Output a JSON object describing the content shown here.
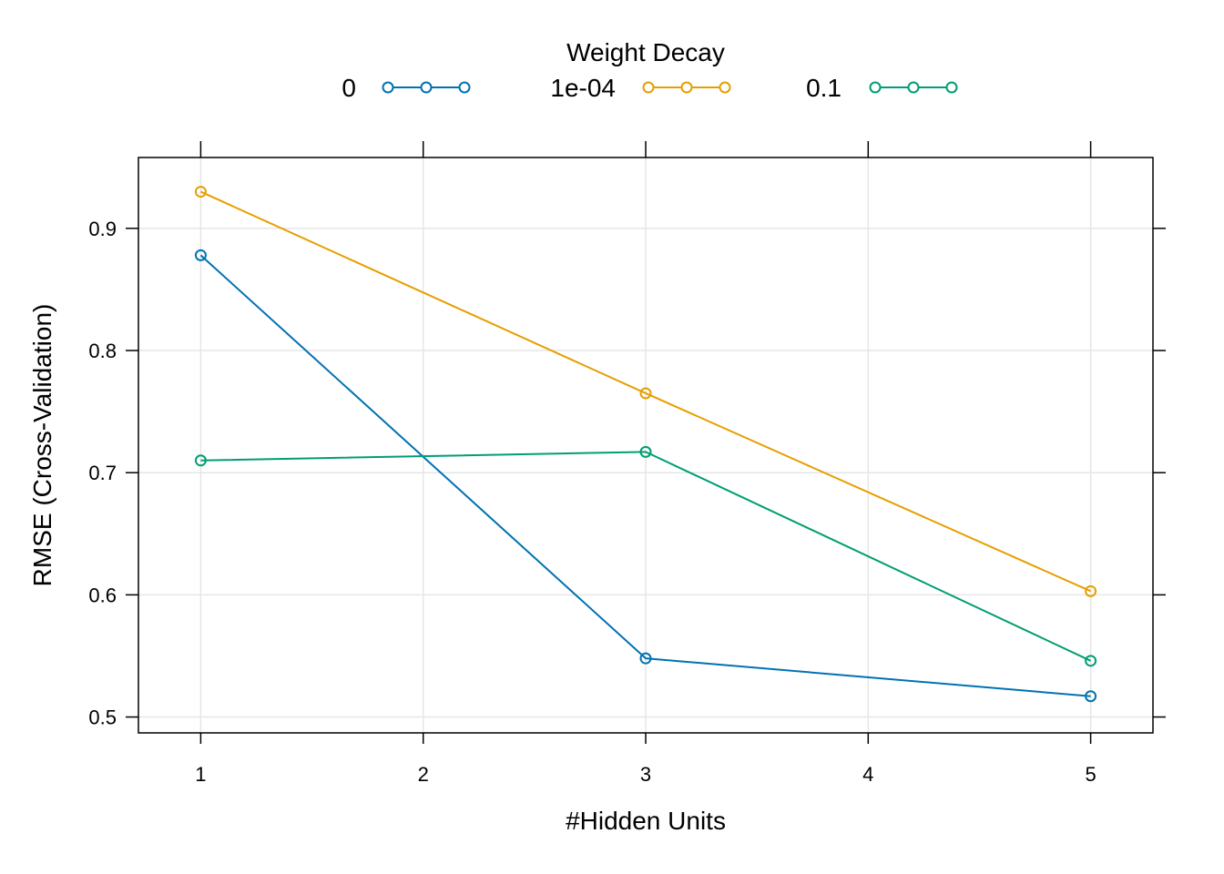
{
  "chart_data": {
    "type": "line",
    "xlabel": "#Hidden Units",
    "ylabel": "RMSE (Cross-Validation)",
    "xlim": [
      0.72,
      5.28
    ],
    "ylim": [
      0.487,
      0.958
    ],
    "x_ticks": [
      "1",
      "2",
      "3",
      "4",
      "5"
    ],
    "y_ticks": [
      "0.5",
      "0.6",
      "0.7",
      "0.8",
      "0.9"
    ],
    "grid": true,
    "legend": {
      "title": "Weight Decay",
      "position": "top"
    },
    "x": [
      1,
      3,
      5
    ],
    "series": [
      {
        "name": "0",
        "color": "#0072B2",
        "values": [
          0.878,
          0.548,
          0.517
        ]
      },
      {
        "name": "1e-04",
        "color": "#E69F00",
        "values": [
          0.93,
          0.765,
          0.603
        ]
      },
      {
        "name": "0.1",
        "color": "#009E73",
        "values": [
          0.71,
          0.717,
          0.546
        ]
      }
    ]
  }
}
